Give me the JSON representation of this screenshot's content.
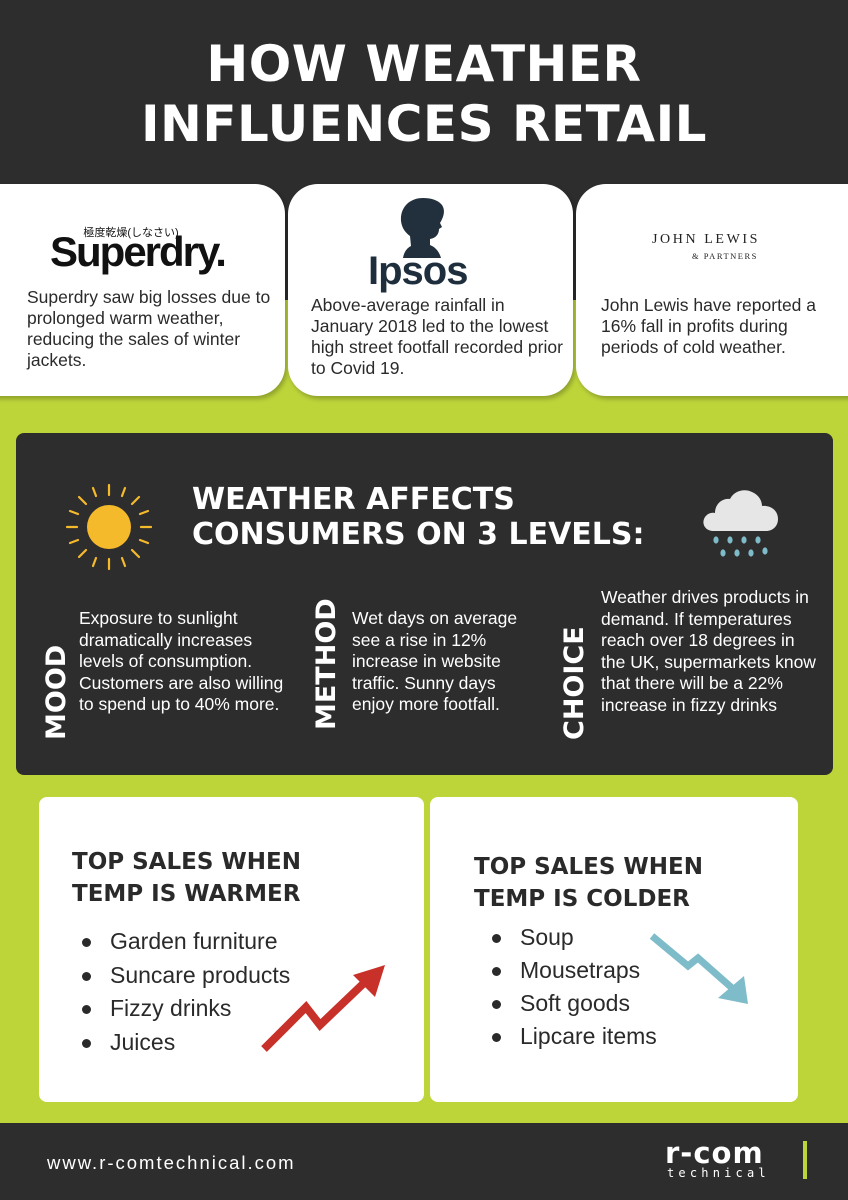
{
  "header": {
    "title": "HOW WEATHER\nINFLUENCES RETAIL"
  },
  "brands": [
    {
      "logo": "Superdry.",
      "logo_sub": "極度乾燥(しなさい)",
      "text": "Superdry saw big losses due to prolonged warm weather, reducing the sales of winter jackets."
    },
    {
      "logo": "Ipsos",
      "text": "Above-average rainfall in January 2018 led to the lowest high street footfall recorded prior to Covid 19."
    },
    {
      "logo": "JOHN LEWIS",
      "logo_sub": "& PARTNERS",
      "text": "John Lewis have reported a 16% fall in profits during periods of cold weather."
    }
  ],
  "consumers": {
    "title": "WEATHER AFFECTS\nCONSUMERS ON 3 LEVELS:",
    "levels": [
      {
        "label": "MOOD",
        "text": "Exposure to sunlight dramatically increases levels of consumption. Customers are also willing to spend up to 40% more."
      },
      {
        "label": "METHOD",
        "text": "Wet days on average see a rise in 12% increase in website traffic. Sunny days enjoy more footfall."
      },
      {
        "label": "CHOICE",
        "text": "Weather drives products in demand. If temperatures reach over 18 degrees in the UK, supermarkets know that there will be a 22% increase in fizzy drinks"
      }
    ]
  },
  "sales": {
    "warmer": {
      "title": "TOP SALES WHEN\nTEMP IS WARMER",
      "items": [
        "Garden furniture",
        "Suncare products",
        "Fizzy drinks",
        "Juices"
      ]
    },
    "colder": {
      "title": "TOP SALES WHEN\nTEMP IS COLDER",
      "items": [
        "Soup",
        "Mousetraps",
        "Soft goods",
        "Lipcare items"
      ]
    }
  },
  "footer": {
    "website": "www.r-comtechnical.com",
    "logo": "r-com",
    "logo_sub": "technical"
  },
  "icons": {
    "sun": "sun-icon",
    "rain": "rain-cloud-icon",
    "up_arrow": "trend-up-arrow-icon",
    "down_arrow": "trend-down-arrow-icon"
  },
  "colors": {
    "dark": "#2d2d2d",
    "lime": "#bed53a",
    "sun": "#f5b92c",
    "up_arrow": "#c8312a",
    "down_arrow": "#7fbcc9"
  }
}
